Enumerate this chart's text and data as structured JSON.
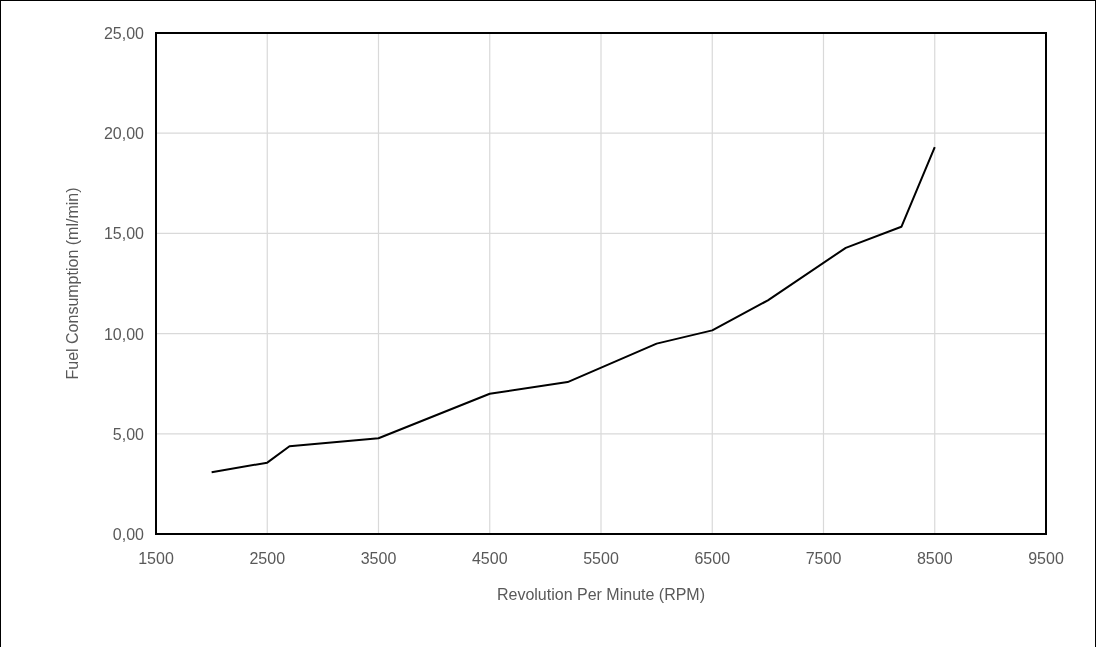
{
  "chart_data": {
    "type": "line",
    "xlabel": "Revolution Per Minute (RPM)",
    "ylabel": "Fuel Consumption (ml/min)",
    "x": [
      2000,
      2500,
      2700,
      3500,
      4500,
      5200,
      6000,
      6500,
      7000,
      7700,
      8200,
      8500
    ],
    "series": [
      {
        "color": "#000000",
        "values": [
          3.08,
          3.56,
          4.38,
          4.78,
          7.0,
          7.58,
          9.5,
          10.16,
          11.66,
          14.28,
          15.33,
          19.3
        ]
      }
    ],
    "xlim": [
      1500,
      9500
    ],
    "xticks": [
      1500,
      2500,
      3500,
      4500,
      5500,
      6500,
      7500,
      8500,
      9500
    ],
    "ylim": [
      0,
      25
    ],
    "yticks": [
      {
        "value": 0,
        "label": "0,00"
      },
      {
        "value": 5,
        "label": "5,00"
      },
      {
        "value": 10,
        "label": "10,00"
      },
      {
        "value": 15,
        "label": "15,00"
      },
      {
        "value": 20,
        "label": "20,00"
      },
      {
        "value": 25,
        "label": "25,00"
      }
    ],
    "grid": true,
    "marker": "none",
    "line_style": "solid"
  }
}
